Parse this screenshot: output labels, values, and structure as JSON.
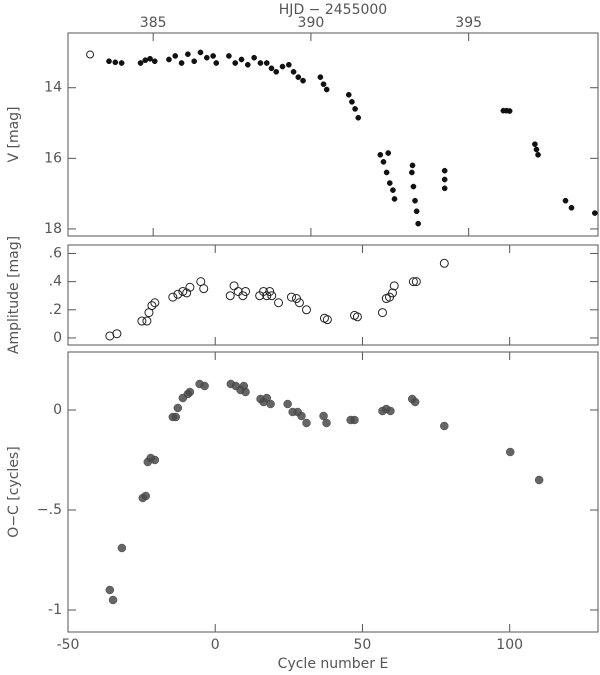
{
  "chart_data": [
    {
      "type": "scatter",
      "xlabel": "HJD − 2455000",
      "ylabel": "V [mag]",
      "xlim": [
        382.3,
        399.1
      ],
      "xticks": [
        385,
        390,
        395
      ],
      "ylim": [
        18.2,
        12.45
      ],
      "yticks": [
        14,
        16,
        18
      ],
      "series": [
        {
          "marker": "open",
          "color": "#222222",
          "x": [
            383.0
          ],
          "y": [
            13.06
          ]
        },
        {
          "marker": "filled",
          "color": "#111111",
          "x": [
            383.6,
            383.8,
            384.0,
            384.6,
            384.75,
            384.9,
            385.05,
            385.5,
            385.7,
            385.9,
            386.1,
            386.3,
            386.5,
            386.7,
            386.9,
            387.0,
            387.4,
            387.6,
            387.8,
            388.0,
            388.2,
            388.4,
            388.6,
            388.75,
            388.9,
            389.1,
            389.3,
            389.45,
            389.6,
            389.75,
            390.3,
            390.4,
            390.5,
            391.2,
            391.3,
            391.4,
            391.5,
            392.2,
            392.3,
            392.4,
            392.5,
            392.6,
            392.65,
            392.45,
            393.2,
            393.25,
            393.3,
            393.35,
            393.4,
            393.22,
            394.24,
            394.24,
            394.24,
            396.1,
            396.2,
            396.3,
            397.1,
            397.15,
            397.2,
            398.07,
            398.26,
            399.0
          ],
          "y": [
            13.25,
            13.28,
            13.3,
            13.3,
            13.22,
            13.18,
            13.25,
            13.2,
            13.1,
            13.3,
            13.05,
            13.25,
            13.0,
            13.15,
            13.1,
            13.3,
            13.1,
            13.3,
            13.2,
            13.35,
            13.15,
            13.3,
            13.3,
            13.45,
            13.55,
            13.4,
            13.35,
            13.55,
            13.7,
            13.8,
            13.7,
            13.9,
            14.05,
            14.2,
            14.4,
            14.6,
            14.85,
            15.9,
            16.1,
            16.4,
            16.7,
            16.9,
            17.15,
            15.85,
            16.4,
            16.8,
            17.2,
            17.5,
            17.85,
            16.2,
            16.35,
            16.6,
            16.85,
            14.65,
            14.65,
            14.66,
            15.6,
            15.75,
            15.9,
            17.2,
            17.4,
            17.55
          ]
        }
      ]
    },
    {
      "type": "scatter",
      "ylabel": "Amplitude [mag]",
      "xlim": [
        -50,
        130
      ],
      "ylim": [
        -0.05,
        0.66
      ],
      "yticks": [
        {
          "value": 0,
          "label": "0"
        },
        {
          "value": 0.2,
          "label": ".2"
        },
        {
          "value": 0.4,
          "label": ".4"
        },
        {
          "value": 0.6,
          "label": ".6"
        }
      ],
      "series": [
        {
          "marker": "open",
          "color": "#222222",
          "x": [
            -35.8,
            -33.4,
            -24.9,
            -23.2,
            -22.5,
            -21.5,
            -20.5,
            -14.4,
            -12.7,
            -11,
            -9.7,
            -8.6,
            -4.9,
            -3.9,
            5.1,
            6.4,
            7.8,
            9.4,
            10.3,
            15.1,
            16.4,
            17.5,
            18.5,
            19.2,
            21.5,
            25.9,
            27.6,
            28.6,
            31,
            37.1,
            38.1,
            47.3,
            48.3,
            56.8,
            58.1,
            59.2,
            60.2,
            60.8,
            67.3,
            68.3,
            77.8
          ],
          "y": [
            0.014,
            0.03,
            0.12,
            0.12,
            0.18,
            0.23,
            0.25,
            0.29,
            0.31,
            0.33,
            0.32,
            0.36,
            0.4,
            0.35,
            0.3,
            0.37,
            0.33,
            0.3,
            0.33,
            0.3,
            0.33,
            0.3,
            0.33,
            0.3,
            0.25,
            0.29,
            0.28,
            0.25,
            0.2,
            0.14,
            0.13,
            0.16,
            0.15,
            0.18,
            0.28,
            0.29,
            0.32,
            0.37,
            0.4,
            0.4,
            0.53
          ]
        }
      ]
    },
    {
      "type": "scatter",
      "xlabel": "Cycle number E",
      "ylabel": "O−C [cycles]",
      "xlim": [
        -50,
        130
      ],
      "xticks": [
        -50,
        0,
        50,
        100
      ],
      "ylim": [
        -1.11,
        0.29
      ],
      "yticks": [
        -1,
        {
          "value": -0.5,
          "label": "−.5"
        },
        0
      ],
      "series": [
        {
          "marker": "filled",
          "color": "#4a4a4a",
          "x": [
            -35.8,
            -34.7,
            -31.7,
            -24.6,
            -23.6,
            -22.9,
            -21.9,
            -20.5,
            -14.4,
            -13.4,
            -12.7,
            -11,
            -9.3,
            -8.6,
            -5.3,
            -3.6,
            5.3,
            7,
            8.6,
            9.7,
            10.3,
            15.4,
            16.4,
            17.5,
            18.8,
            24.6,
            26.3,
            28,
            29.3,
            31,
            36.8,
            37.8,
            46,
            47.3,
            56.8,
            58.1,
            59.5,
            66.9,
            67.9,
            77.8,
            100.2,
            110
          ],
          "y": [
            -0.9,
            -0.95,
            -0.69,
            -0.44,
            -0.43,
            -0.26,
            -0.24,
            -0.25,
            -0.035,
            -0.035,
            0.01,
            0.06,
            0.08,
            0.09,
            0.13,
            0.12,
            0.13,
            0.12,
            0.1,
            0.12,
            0.09,
            0.055,
            0.04,
            0.06,
            0.03,
            0.03,
            -0.01,
            -0.01,
            -0.03,
            -0.065,
            -0.03,
            -0.065,
            -0.05,
            -0.05,
            -0.005,
            0.005,
            -0.005,
            0.055,
            0.04,
            -0.08,
            -0.21,
            -0.35
          ]
        }
      ]
    }
  ]
}
